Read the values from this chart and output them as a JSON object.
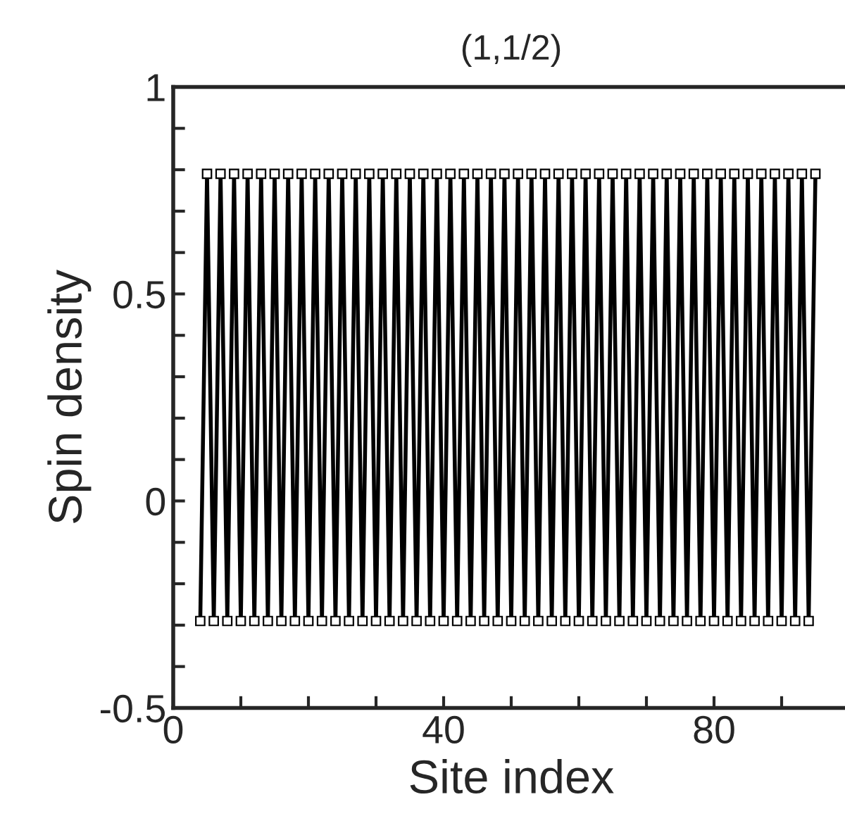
{
  "chart_data": {
    "type": "line",
    "title": "(1,1/2)",
    "xlabel": "Site index",
    "ylabel": "Spin density",
    "x": [
      4,
      5,
      6,
      7,
      8,
      9,
      10,
      11,
      12,
      13,
      14,
      15,
      16,
      17,
      18,
      19,
      20,
      21,
      22,
      23,
      24,
      25,
      26,
      27,
      28,
      29,
      30,
      31,
      32,
      33,
      34,
      35,
      36,
      37,
      38,
      39,
      40,
      41,
      42,
      43,
      44,
      45,
      46,
      47,
      48,
      49,
      50,
      51,
      52,
      53,
      54,
      55,
      56,
      57,
      58,
      59,
      60,
      61,
      62,
      63,
      64,
      65,
      66,
      67,
      68,
      69,
      70,
      71,
      72,
      73,
      74,
      75,
      76,
      77,
      78,
      79,
      80,
      81,
      82,
      83,
      84,
      85,
      86,
      87,
      88,
      89,
      90,
      91,
      92,
      93,
      94,
      95
    ],
    "series": [
      {
        "color": "#000000",
        "values": [
          -0.29,
          0.79,
          -0.29,
          0.79,
          -0.29,
          0.79,
          -0.29,
          0.79,
          -0.29,
          0.79,
          -0.29,
          0.79,
          -0.29,
          0.79,
          -0.29,
          0.79,
          -0.29,
          0.79,
          -0.29,
          0.79,
          -0.29,
          0.79,
          -0.29,
          0.79,
          -0.29,
          0.79,
          -0.29,
          0.79,
          -0.29,
          0.79,
          -0.29,
          0.79,
          -0.29,
          0.79,
          -0.29,
          0.79,
          -0.29,
          0.79,
          -0.29,
          0.79,
          -0.29,
          0.79,
          -0.29,
          0.79,
          -0.29,
          0.79,
          -0.29,
          0.79,
          -0.29,
          0.79,
          -0.29,
          0.79,
          -0.29,
          0.79,
          -0.29,
          0.79,
          -0.29,
          0.79,
          -0.29,
          0.79,
          -0.29,
          0.79,
          -0.29,
          0.79,
          -0.29,
          0.79,
          -0.29,
          0.79,
          -0.29,
          0.79,
          -0.29,
          0.79,
          -0.29,
          0.79,
          -0.29,
          0.79,
          -0.29,
          0.79,
          -0.29,
          0.79,
          -0.29,
          0.79,
          -0.29,
          0.79,
          -0.29,
          0.79,
          -0.29,
          0.79,
          -0.29,
          0.79,
          -0.29,
          0.79
        ]
      }
    ],
    "marker": "square",
    "line_style": "solid",
    "grid": false,
    "legend": false,
    "xlim": [
      0,
      100
    ],
    "xticks": [
      0,
      {
        "value": 10,
        "label": null
      },
      {
        "value": 20,
        "label": null
      },
      {
        "value": 30,
        "label": null
      },
      40,
      {
        "value": 50,
        "label": null
      },
      {
        "value": 60,
        "label": null
      },
      {
        "value": 70,
        "label": null
      },
      80,
      {
        "value": 90,
        "label": null
      },
      {
        "value": 100,
        "label": null
      }
    ],
    "ylim": [
      -0.5,
      1
    ],
    "yticks": [
      -0.5,
      {
        "value": -0.4,
        "label": null
      },
      {
        "value": -0.3,
        "label": null
      },
      {
        "value": -0.2,
        "label": null
      },
      {
        "value": -0.1,
        "label": null
      },
      0,
      {
        "value": 0.1,
        "label": null
      },
      {
        "value": 0.2,
        "label": null
      },
      {
        "value": 0.3,
        "label": null
      },
      {
        "value": 0.4,
        "label": null
      },
      0.5,
      {
        "value": 0.6,
        "label": null
      },
      {
        "value": 0.7,
        "label": null
      },
      {
        "value": 0.8,
        "label": null
      },
      {
        "value": 0.9,
        "label": null
      },
      1
    ]
  }
}
